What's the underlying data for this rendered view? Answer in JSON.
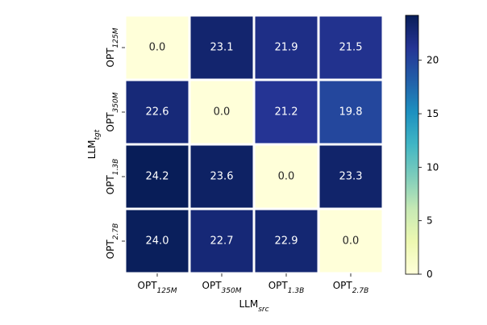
{
  "chart_data": {
    "type": "heatmap",
    "x_categories": [
      {
        "base": "OPT",
        "sub": "125M"
      },
      {
        "base": "OPT",
        "sub": "350M"
      },
      {
        "base": "OPT",
        "sub": "1.3B"
      },
      {
        "base": "OPT",
        "sub": "2.7B"
      }
    ],
    "y_categories": [
      {
        "base": "OPT",
        "sub": "125M"
      },
      {
        "base": "OPT",
        "sub": "350M"
      },
      {
        "base": "OPT",
        "sub": "1.3B"
      },
      {
        "base": "OPT",
        "sub": "2.7B"
      }
    ],
    "xlabel": {
      "base": "LLM",
      "sub": "src"
    },
    "ylabel": {
      "base": "LLM",
      "sub": "tgt"
    },
    "values": [
      [
        0.0,
        23.1,
        21.9,
        21.5
      ],
      [
        22.6,
        0.0,
        21.2,
        19.8
      ],
      [
        24.2,
        23.6,
        0.0,
        23.3
      ],
      [
        24.0,
        22.7,
        22.9,
        0.0
      ]
    ],
    "value_labels": [
      [
        "0.0",
        "23.1",
        "21.9",
        "21.5"
      ],
      [
        "22.6",
        "0.0",
        "21.2",
        "19.8"
      ],
      [
        "24.2",
        "23.6",
        "0.0",
        "23.3"
      ],
      [
        "24.0",
        "22.7",
        "22.9",
        "0.0"
      ]
    ],
    "colorbar": {
      "colormap": "YlGnBu",
      "range": [
        0,
        24.2
      ],
      "ticks": [
        0,
        5,
        10,
        15,
        20
      ],
      "tick_labels": [
        "0",
        "5",
        "10",
        "15",
        "20"
      ]
    },
    "colors": {
      "low": "#ffffd9",
      "high": "#081d58",
      "cell_border": "#ffffff",
      "label_dark": "#262626",
      "label_light": "#ffffff"
    }
  }
}
